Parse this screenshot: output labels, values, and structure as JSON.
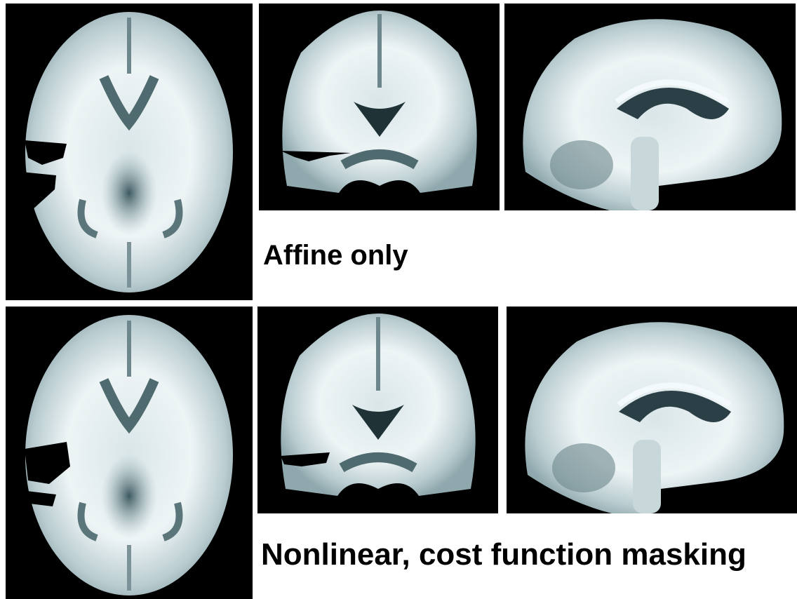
{
  "rows": [
    {
      "caption": "Affine only"
    },
    {
      "caption": "Nonlinear, cost function masking"
    }
  ]
}
